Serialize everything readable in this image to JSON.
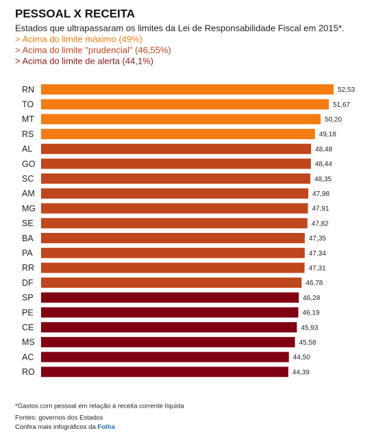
{
  "chart_data": {
    "type": "bar",
    "orientation": "horizontal",
    "title": "PESSOAL X RECEITA",
    "subtitle": "Estados que ultrapassaram os limites da Lei de Responsabilidade Fiscal em 2015*.",
    "legend": [
      {
        "label": "> Acima do limite máximo (49%)",
        "color": "#f57c12"
      },
      {
        "label": "> Acima do limite \"prudencial\" (46,55%)",
        "color": "#c0441e"
      },
      {
        "label": "> Acima do limite de alerta (44,1%)",
        "color": "#8b1a1a"
      }
    ],
    "categories": [
      "RN",
      "TO",
      "MT",
      "RS",
      "AL",
      "GO",
      "SC",
      "AM",
      "MG",
      "SE",
      "BA",
      "PA",
      "RR",
      "DF",
      "SP",
      "PE",
      "CE",
      "MS",
      "AC",
      "RO"
    ],
    "values": [
      52.53,
      51.67,
      50.2,
      49.18,
      48.48,
      48.44,
      48.35,
      47.98,
      47.91,
      47.82,
      47.35,
      47.34,
      47.31,
      46.78,
      46.28,
      46.19,
      45.93,
      45.58,
      44.5,
      44.39
    ],
    "value_labels": [
      "52,53",
      "51,67",
      "50,20",
      "49,18",
      "48,48",
      "48,44",
      "48,35",
      "47,98",
      "47,91",
      "47,82",
      "47,35",
      "47,34",
      "47,31",
      "46,78",
      "46,28",
      "46,19",
      "45,93",
      "45,58",
      "44,50",
      "44,39"
    ],
    "colors": [
      "#f57c12",
      "#f57c12",
      "#f57c12",
      "#f57c12",
      "#bf461d",
      "#bf461d",
      "#bf461d",
      "#bf461d",
      "#bf461d",
      "#bf461d",
      "#bf461d",
      "#bf461d",
      "#bf461d",
      "#bf461d",
      "#800012",
      "#800012",
      "#800012",
      "#800012",
      "#800012",
      "#800012"
    ],
    "footnote": "*Gastos com pessoal em relação à receita corrente líquida",
    "source": "Fontes: governos dos Estados",
    "more": "Confira mais infográficos da ",
    "brand": "Folha"
  }
}
